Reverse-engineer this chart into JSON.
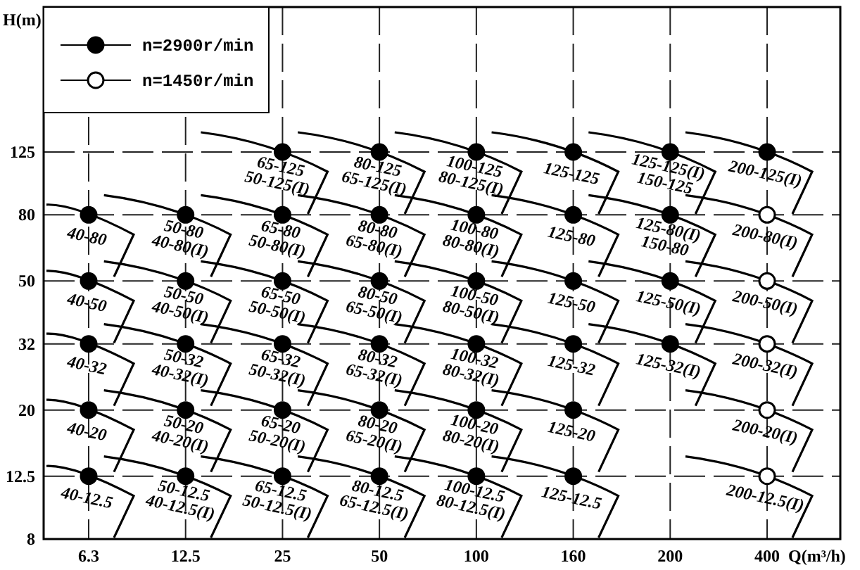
{
  "chart_data": {
    "type": "scatter",
    "xlabel": "Q(m³/h)",
    "ylabel": "H(m)",
    "categories": [
      "6.3",
      "12.5",
      "25",
      "50",
      "100",
      "160",
      "200",
      "400"
    ],
    "log": "y",
    "ylim": [
      8,
      350
    ],
    "yticks": [
      8,
      12.5,
      20,
      32,
      50,
      80,
      125
    ],
    "grid": true,
    "legend": "top left",
    "marker": "circle",
    "series": [
      {
        "name": "n=2900r/min",
        "color": "#000000",
        "x": [
          "6.3",
          "6.3",
          "6.3",
          "6.3",
          "6.3",
          "12.5",
          "12.5",
          "12.5",
          "12.5",
          "12.5",
          "25",
          "25",
          "25",
          "25",
          "25",
          "25",
          "50",
          "50",
          "50",
          "50",
          "50",
          "50",
          "100",
          "100",
          "100",
          "100",
          "100",
          "100",
          "160",
          "160",
          "160",
          "160",
          "160",
          "160",
          "200",
          "200",
          "200",
          "200",
          "400"
        ],
        "values": [
          80,
          50,
          32,
          20,
          12.5,
          80,
          50,
          32,
          20,
          12.5,
          125,
          80,
          50,
          32,
          20,
          12.5,
          125,
          80,
          50,
          32,
          20,
          12.5,
          125,
          80,
          50,
          32,
          20,
          12.5,
          125,
          80,
          50,
          32,
          20,
          12.5,
          125,
          80,
          50,
          32,
          125
        ]
      },
      {
        "name": "n=1450r/min",
        "color": "#ffffff",
        "x": [
          "400",
          "400",
          "400",
          "400",
          "400"
        ],
        "values": [
          80,
          50,
          32,
          20,
          12.5
        ]
      }
    ],
    "annotations": [
      {
        "text": "40-80",
        "x": "6.3",
        "y": 80
      },
      {
        "text": "40-50",
        "x": "6.3",
        "y": 50
      },
      {
        "text": "40-32",
        "x": "6.3",
        "y": 32
      },
      {
        "text": "40-20",
        "x": "6.3",
        "y": 20
      },
      {
        "text": "40-12.5",
        "x": "6.3",
        "y": 12.5
      },
      {
        "text": "50-80\n40-80(I)",
        "x": "12.5",
        "y": 80
      },
      {
        "text": "50-50\n40-50(I)",
        "x": "12.5",
        "y": 50
      },
      {
        "text": "50-32\n40-32(I)",
        "x": "12.5",
        "y": 32
      },
      {
        "text": "50-20\n40-20(I)",
        "x": "12.5",
        "y": 20
      },
      {
        "text": "50-12.5\n40-12.5(I)",
        "x": "12.5",
        "y": 12.5
      },
      {
        "text": "65-125\n50-125(I)",
        "x": "25",
        "y": 125
      },
      {
        "text": "65-80\n50-80(I)",
        "x": "25",
        "y": 80
      },
      {
        "text": "65-50\n50-50(I)",
        "x": "25",
        "y": 50
      },
      {
        "text": "65-32\n50-32(I)",
        "x": "25",
        "y": 32
      },
      {
        "text": "65-20\n50-20(I)",
        "x": "25",
        "y": 20
      },
      {
        "text": "65-12.5\n50-12.5(I)",
        "x": "25",
        "y": 12.5
      },
      {
        "text": "80-125\n65-125(I)",
        "x": "50",
        "y": 125
      },
      {
        "text": "80-80\n65-80(I)",
        "x": "50",
        "y": 80
      },
      {
        "text": "80-50\n65-50(I)",
        "x": "50",
        "y": 50
      },
      {
        "text": "80-32\n65-32(I)",
        "x": "50",
        "y": 32
      },
      {
        "text": "80-20\n65-20(I)",
        "x": "50",
        "y": 20
      },
      {
        "text": "80-12.5\n65-12.5(I)",
        "x": "50",
        "y": 12.5
      },
      {
        "text": "100-125\n80-125(I)",
        "x": "100",
        "y": 125
      },
      {
        "text": "100-80\n80-80(I)",
        "x": "100",
        "y": 80
      },
      {
        "text": "100-50\n80-50(I)",
        "x": "100",
        "y": 50
      },
      {
        "text": "100-32\n80-32(I)",
        "x": "100",
        "y": 32
      },
      {
        "text": "100-20\n80-20(I)",
        "x": "100",
        "y": 20
      },
      {
        "text": "100-12.5\n80-12.5(I)",
        "x": "100",
        "y": 12.5
      },
      {
        "text": "125-125",
        "x": "160",
        "y": 125
      },
      {
        "text": "125-80",
        "x": "160",
        "y": 80
      },
      {
        "text": "125-50",
        "x": "160",
        "y": 50
      },
      {
        "text": "125-32",
        "x": "160",
        "y": 32
      },
      {
        "text": "125-20",
        "x": "160",
        "y": 20
      },
      {
        "text": "125-12.5",
        "x": "160",
        "y": 12.5
      },
      {
        "text": "125-125(I)\n150-125",
        "x": "200",
        "y": 125
      },
      {
        "text": "125-80(I)\n150-80",
        "x": "200",
        "y": 80
      },
      {
        "text": "125-50(I)",
        "x": "200",
        "y": 50
      },
      {
        "text": "125-32(I)",
        "x": "200",
        "y": 32
      },
      {
        "text": "200-125(I)",
        "x": "400",
        "y": 125
      },
      {
        "text": "200-80(I)",
        "x": "400",
        "y": 80
      },
      {
        "text": "200-50(I)",
        "x": "400",
        "y": 50
      },
      {
        "text": "200-32(I)",
        "x": "400",
        "y": 32
      },
      {
        "text": "200-20(I)",
        "x": "400",
        "y": 20
      },
      {
        "text": "200-12.5(I)",
        "x": "400",
        "y": 12.5
      }
    ]
  }
}
